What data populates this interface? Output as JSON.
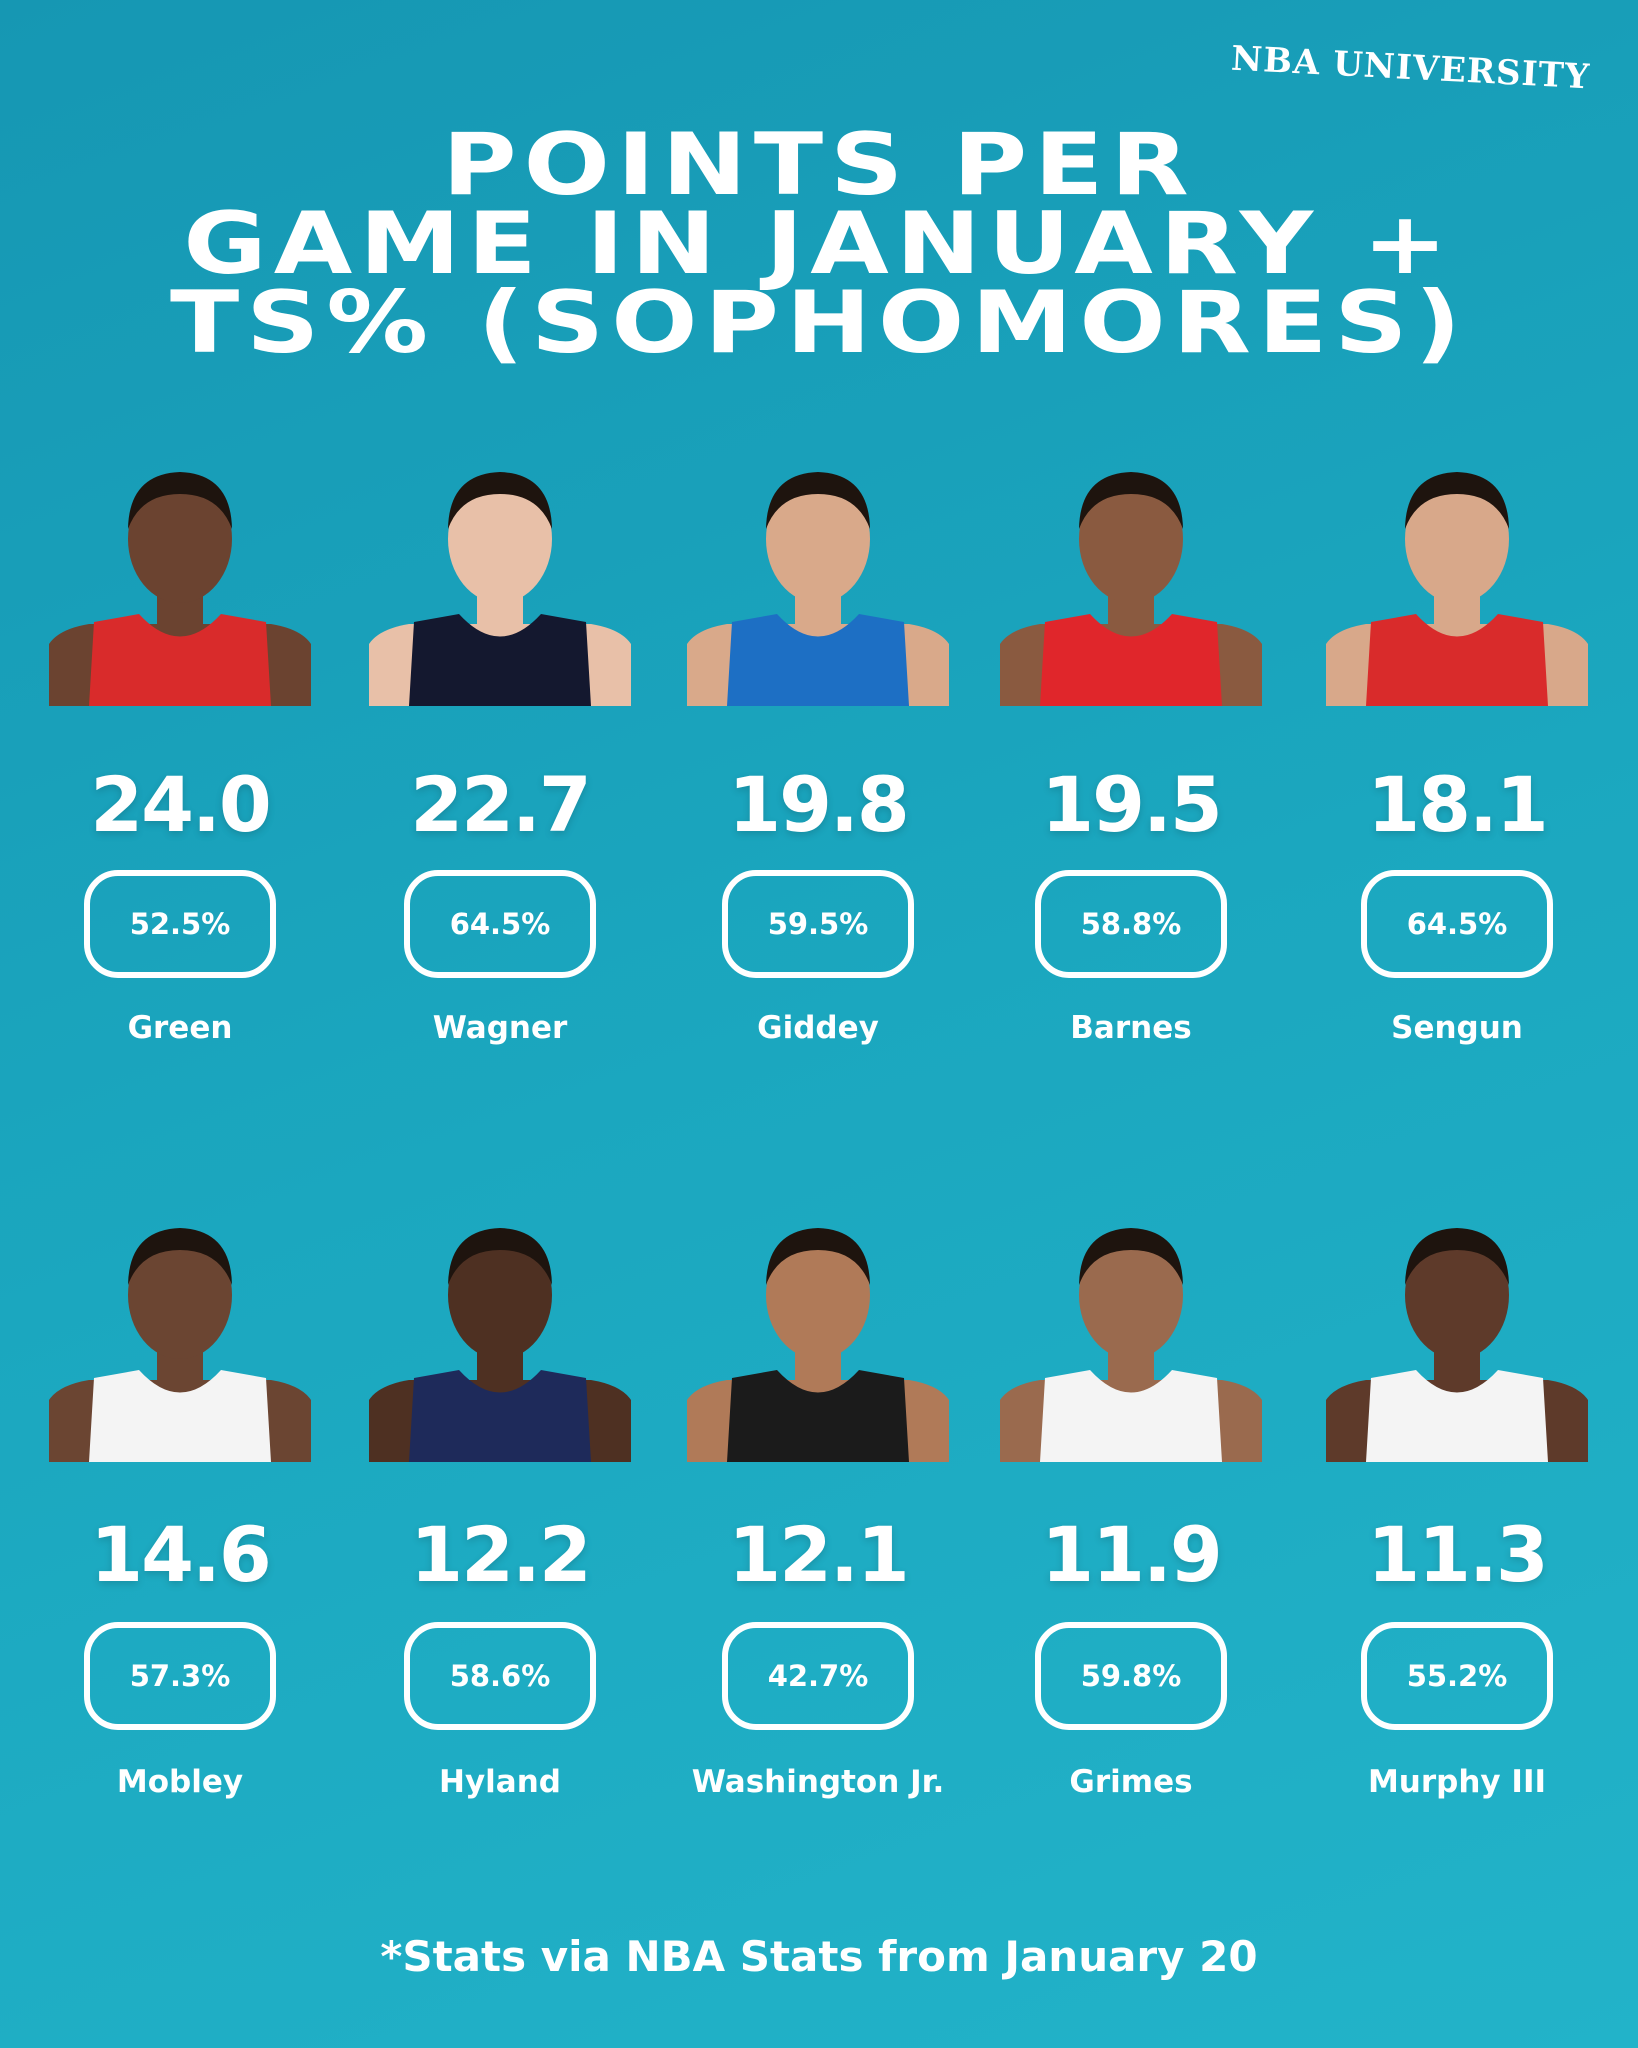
{
  "brand": "NBA UNIVERSITY",
  "title": [
    "POINTS PER",
    "GAME IN JANUARY +",
    "TS% (SOPHOMORES)"
  ],
  "players": [
    {
      "points": "24.0",
      "ts": "52.5%",
      "name": "Green"
    },
    {
      "points": "22.7",
      "ts": "64.5%",
      "name": "Wagner"
    },
    {
      "points": "19.8",
      "ts": "59.5%",
      "name": "Giddey"
    },
    {
      "points": "19.5",
      "ts": "58.8%",
      "name": "Barnes"
    },
    {
      "points": "18.1",
      "ts": "64.5%",
      "name": "Sengun"
    },
    {
      "points": "14.6",
      "ts": "57.3%",
      "name": "Mobley"
    },
    {
      "points": "12.2",
      "ts": "58.6%",
      "name": "Hyland"
    },
    {
      "points": "12.1",
      "ts": "42.7%",
      "name": "Washington Jr."
    },
    {
      "points": "11.9",
      "ts": "59.8%",
      "name": "Grimes"
    },
    {
      "points": "11.3",
      "ts": "55.2%",
      "name": "Murphy III"
    }
  ],
  "footnote": "*Stats via NBA Stats from January 20"
}
